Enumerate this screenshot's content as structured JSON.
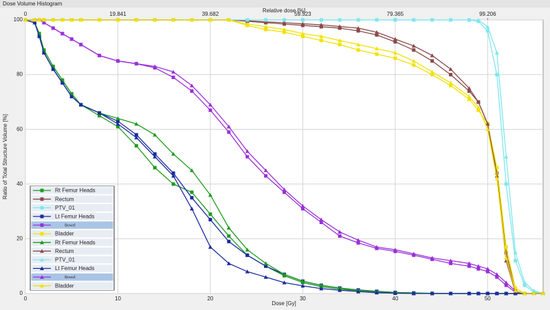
{
  "chart_data": {
    "type": "line",
    "title": "Dose Volume Histogram",
    "x_label": "Dose [Gy]",
    "y_label": "Ratio of Total Structure Volume [%]",
    "x2_label": "Relative dose [%]",
    "x": [
      0,
      1,
      1.5,
      2,
      3,
      4,
      5,
      6,
      8,
      10,
      12,
      14,
      16,
      18,
      20,
      22,
      24,
      26,
      28,
      30,
      32,
      34,
      36,
      38,
      40,
      42,
      44,
      46,
      48,
      49,
      50,
      51,
      52,
      53,
      54,
      55,
      56
    ],
    "xlim": [
      0,
      56
    ],
    "xticks": [
      0,
      10,
      20,
      30,
      40,
      50
    ],
    "x2lim": [
      0,
      111.11
    ],
    "x2ticks": [
      0,
      19.841,
      39.682,
      59.523,
      79.365,
      99.206
    ],
    "ylim": [
      0,
      100
    ],
    "yticks": [
      0,
      20,
      40,
      60,
      80,
      100
    ],
    "grid": true,
    "legend": "lower left",
    "series": [
      {
        "name": "Rt Femur Heads",
        "color": "#1f9a1f",
        "marker": "square",
        "values": [
          100,
          99,
          95,
          89,
          83,
          78,
          73,
          69,
          65,
          61,
          54,
          46,
          40,
          37,
          29,
          21,
          14,
          10,
          6.5,
          4,
          2.5,
          1.6,
          1,
          0.6,
          0.3,
          0.15,
          0.05,
          0,
          0,
          0,
          0,
          0,
          0,
          0,
          0,
          0,
          0
        ]
      },
      {
        "name": "Rectum",
        "color": "#8b4a4a",
        "marker": "square",
        "values": [
          100,
          100,
          100,
          100,
          100,
          100,
          100,
          100,
          100,
          100,
          100,
          100,
          100,
          100,
          100,
          100,
          99.5,
          99,
          98.5,
          98,
          97.5,
          97,
          96,
          94.5,
          92,
          89,
          85,
          80,
          74,
          70,
          62,
          44,
          15,
          1,
          0,
          0,
          0
        ]
      },
      {
        "name": "PTV_01",
        "color": "#7fe6ee",
        "marker": "square",
        "values": [
          100,
          100,
          100,
          100,
          100,
          100,
          100,
          100,
          100,
          100,
          100,
          100,
          100,
          100,
          100,
          100,
          100,
          100,
          100,
          100,
          100,
          100,
          100,
          100,
          100,
          100,
          100,
          100,
          100,
          99.5,
          96,
          80,
          40,
          12,
          3,
          0.5,
          0
        ]
      },
      {
        "name": "Lt Femur Heads",
        "color": "#1a2aa0",
        "marker": "square",
        "values": [
          100,
          99,
          94,
          88,
          82,
          77,
          72,
          69,
          66,
          63,
          58,
          51,
          44,
          35,
          27,
          19,
          14,
          10,
          7,
          4.5,
          3,
          2,
          1.3,
          0.8,
          0.4,
          0.2,
          0,
          0,
          0,
          0,
          0,
          0,
          0,
          0,
          0,
          0,
          0
        ]
      },
      {
        "name": "Bowel",
        "color": "#9a30d8",
        "marker": "square",
        "values": [
          100,
          100,
          100,
          99,
          97,
          95,
          93,
          91,
          87,
          85,
          84,
          82.5,
          79,
          74,
          67,
          59,
          50,
          43,
          37,
          31,
          26,
          21,
          18.5,
          16.5,
          15.4,
          14,
          12.5,
          11,
          10,
          9,
          8,
          6,
          3,
          0.5,
          0,
          0,
          0
        ]
      },
      {
        "name": "Bladder",
        "color": "#f2e200",
        "marker": "square",
        "values": [
          100,
          100,
          100,
          100,
          100,
          100,
          100,
          100,
          100,
          100,
          100,
          100,
          100,
          100,
          100,
          100,
          98,
          96.5,
          95.5,
          94,
          92.5,
          91,
          89,
          87.5,
          86,
          83.5,
          80,
          76,
          71,
          67,
          62,
          46,
          17,
          2,
          0,
          0,
          0
        ]
      },
      {
        "name": "Rt Femur Heads",
        "color": "#1f9a1f",
        "marker": "triangle",
        "values": [
          100,
          99,
          95,
          89,
          83,
          78,
          73,
          69,
          66,
          64,
          62,
          58,
          51,
          45,
          36,
          24,
          16,
          11,
          7,
          4.5,
          3,
          2,
          1.2,
          0.7,
          0.4,
          0.2,
          0.1,
          0,
          0,
          0,
          0,
          0,
          0,
          0,
          0,
          0,
          0
        ]
      },
      {
        "name": "Rectum",
        "color": "#8b4a4a",
        "marker": "triangle",
        "values": [
          100,
          100,
          100,
          100,
          100,
          100,
          100,
          100,
          100,
          100,
          100,
          100,
          100,
          100,
          100,
          100,
          99.7,
          99.3,
          99,
          98.6,
          98.2,
          97.6,
          97,
          95.5,
          93,
          90.5,
          87,
          82,
          75,
          70,
          62,
          43,
          12,
          0.5,
          0,
          0,
          0
        ]
      },
      {
        "name": "PTV_01",
        "color": "#7fe6ee",
        "marker": "triangle",
        "values": [
          100,
          100,
          100,
          100,
          100,
          100,
          100,
          100,
          100,
          100,
          100,
          100,
          100,
          100,
          100,
          100,
          100,
          100,
          100,
          100,
          100,
          100,
          100,
          100,
          100,
          100,
          100,
          100,
          100,
          100,
          97.5,
          88,
          50,
          15,
          4,
          1,
          0
        ]
      },
      {
        "name": "Lt Femur Heads",
        "color": "#1a2aa0",
        "marker": "triangle",
        "values": [
          100,
          99,
          94,
          88,
          82,
          77,
          72,
          69,
          66,
          62,
          57,
          50,
          43,
          31,
          17,
          11,
          8,
          6,
          4,
          2.8,
          1.8,
          1.2,
          0.7,
          0.3,
          0.1,
          0,
          0,
          0,
          0,
          0,
          0,
          0,
          0,
          0,
          0,
          0,
          0
        ]
      },
      {
        "name": "Bowel",
        "color": "#9a30d8",
        "marker": "triangle",
        "values": [
          100,
          100,
          100,
          99,
          97,
          95,
          93,
          91,
          87,
          85,
          84,
          83,
          81,
          76,
          69,
          61,
          52,
          45,
          38,
          32,
          27,
          22.5,
          19.5,
          17,
          16,
          14.5,
          13,
          12,
          11,
          10,
          9,
          7,
          4,
          1,
          0,
          0,
          0
        ]
      },
      {
        "name": "Bladder",
        "color": "#f2e200",
        "marker": "triangle",
        "values": [
          100,
          100,
          100,
          100,
          100,
          100,
          100,
          100,
          100,
          100,
          100,
          100,
          100,
          100,
          100,
          100,
          98.5,
          97.5,
          96.5,
          95,
          94,
          92.5,
          91,
          89.5,
          88,
          85,
          81,
          77,
          72,
          68,
          60,
          42,
          13,
          1,
          0,
          0,
          0
        ]
      }
    ]
  }
}
